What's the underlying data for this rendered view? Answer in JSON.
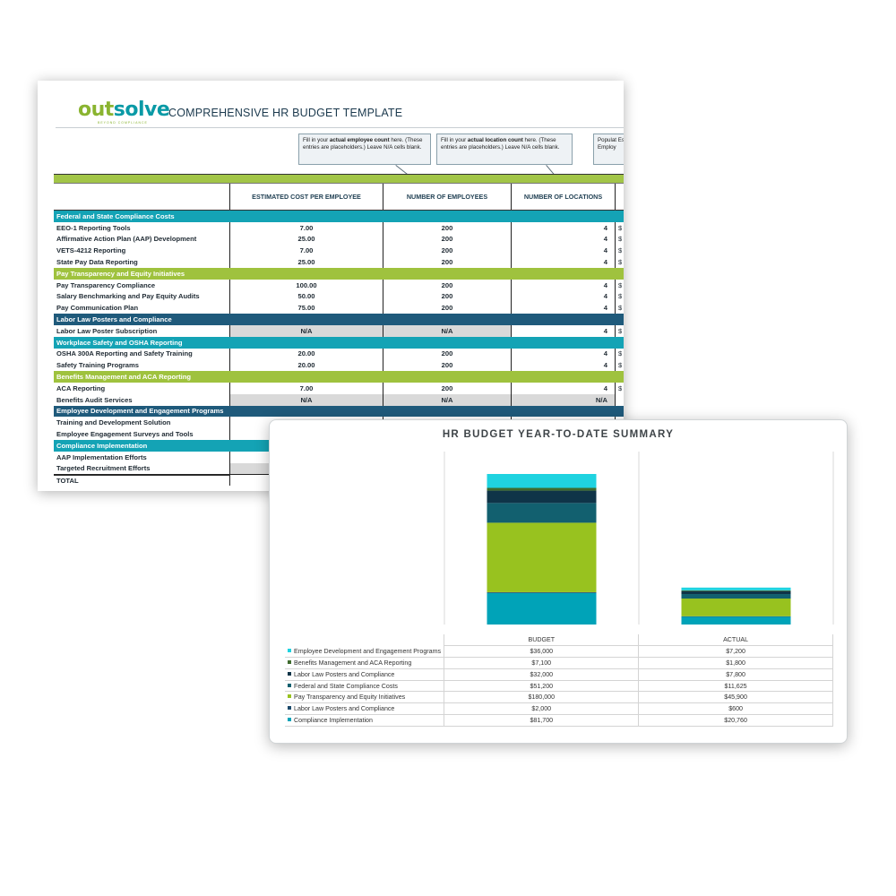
{
  "sheet": {
    "logo": {
      "part1": "out",
      "part2": "solve",
      "tagline": "BEYOND COMPLIANCE"
    },
    "title": "COMPREHENSIVE HR BUDGET TEMPLATE",
    "notes": [
      {
        "pre": "Fill in your ",
        "bold": "actual employee count",
        "post": " here. (These entries are placeholders.) Leave N/A cells blank."
      },
      {
        "pre": "Fill in your ",
        "bold": "actual location count",
        "post": " here. (These entries are placeholders.) Leave N/A cells blank."
      },
      {
        "pre": "Populat",
        "bold": "",
        "post": " Estimat Employ"
      }
    ],
    "columns": [
      "",
      "ESTIMATED COST PER EMPLOYEE",
      "NUMBER OF EMPLOYEES",
      "NUMBER OF LOCATIONS"
    ],
    "rows": [
      {
        "type": "cat",
        "color": "teal",
        "label": "Federal and State Compliance Costs"
      },
      {
        "type": "item",
        "label": "EEO-1 Reporting Tools",
        "cost": "7.00",
        "emp": "200",
        "loc": "4",
        "tail": "$"
      },
      {
        "type": "item",
        "label": "Affirmative Action Plan (AAP) Development",
        "cost": "25.00",
        "emp": "200",
        "loc": "4",
        "tail": "$"
      },
      {
        "type": "item",
        "label": "VETS-4212 Reporting",
        "cost": "7.00",
        "emp": "200",
        "loc": "4",
        "tail": "$"
      },
      {
        "type": "item",
        "label": "State Pay Data Reporting",
        "cost": "25.00",
        "emp": "200",
        "loc": "4",
        "tail": "$"
      },
      {
        "type": "cat",
        "color": "green",
        "label": "Pay Transparency and Equity Initiatives"
      },
      {
        "type": "item",
        "label": "Pay Transparency Compliance",
        "cost": "100.00",
        "emp": "200",
        "loc": "4",
        "tail": "$"
      },
      {
        "type": "item",
        "label": "Salary Benchmarking and Pay Equity Audits",
        "cost": "50.00",
        "emp": "200",
        "loc": "4",
        "tail": "$"
      },
      {
        "type": "item",
        "label": "Pay Communication Plan",
        "cost": "75.00",
        "emp": "200",
        "loc": "4",
        "tail": "$"
      },
      {
        "type": "cat",
        "color": "navy",
        "label": "Labor Law Posters and Compliance"
      },
      {
        "type": "item",
        "label": "Labor Law Poster Subscription",
        "cost": "N/A",
        "emp": "N/A",
        "loc": "4",
        "tail": "$",
        "na": [
          1,
          2
        ]
      },
      {
        "type": "cat",
        "color": "teal",
        "label": "Workplace Safety and OSHA Reporting"
      },
      {
        "type": "item",
        "label": "OSHA 300A Reporting and Safety Training",
        "cost": "20.00",
        "emp": "200",
        "loc": "4",
        "tail": "$"
      },
      {
        "type": "item",
        "label": "Safety Training Programs",
        "cost": "20.00",
        "emp": "200",
        "loc": "4",
        "tail": "$"
      },
      {
        "type": "cat",
        "color": "green",
        "label": "Benefits Management and ACA Reporting"
      },
      {
        "type": "item",
        "label": "ACA Reporting",
        "cost": "7.00",
        "emp": "200",
        "loc": "4",
        "tail": "$"
      },
      {
        "type": "item",
        "label": "Benefits Audit Services",
        "cost": "N/A",
        "emp": "N/A",
        "loc": "N/A",
        "tail": "",
        "na": [
          1,
          2,
          3
        ]
      },
      {
        "type": "cat",
        "color": "navy",
        "label": "Employee Development and Engagement Programs"
      },
      {
        "type": "item",
        "label": "Training and Development Solution",
        "cost": "",
        "emp": "",
        "loc": "",
        "tail": ""
      },
      {
        "type": "item",
        "label": "Employee Engagement Surveys and Tools",
        "cost": "",
        "emp": "",
        "loc": "",
        "tail": ""
      },
      {
        "type": "cat",
        "color": "teal",
        "label": "Compliance Implementation"
      },
      {
        "type": "item",
        "label": "AAP Implementation Efforts",
        "cost": "",
        "emp": "",
        "loc": "",
        "tail": ""
      },
      {
        "type": "item",
        "label": "Targeted Recruitment Efforts",
        "cost": "",
        "emp": "",
        "loc": "",
        "tail": "",
        "na": [
          1
        ]
      },
      {
        "type": "total",
        "label": "TOTAL"
      }
    ]
  },
  "colors": {
    "teal": "#14a3b5",
    "green": "#9fc23e",
    "navy": "#1f5a7b",
    "cyan": "#1fd3e0",
    "bar_olive": "#3f6b2e",
    "bar_dark": "#0f3448",
    "bar_teal_dark": "#12606f",
    "bar_green": "#98c21f",
    "bar_navy": "#1c4a6b",
    "bar_teal": "#00a3b8"
  },
  "chart_data": {
    "type": "bar",
    "stacked": true,
    "title": "HR BUDGET YEAR-TO-DATE SUMMARY",
    "categories": [
      "BUDGET",
      "ACTUAL"
    ],
    "series": [
      {
        "name": "Employee Development and Engagement Programs",
        "values": [
          36000,
          7200
        ],
        "labels": [
          "$36,000",
          "$7,200"
        ],
        "color": "#1fd3e0"
      },
      {
        "name": "Benefits Management and ACA Reporting",
        "values": [
          7100,
          1800
        ],
        "labels": [
          "$7,100",
          "$1,800"
        ],
        "color": "#3f6b2e"
      },
      {
        "name": "Labor Law Posters and Compliance",
        "values": [
          32000,
          7800
        ],
        "labels": [
          "$32,000",
          "$7,800"
        ],
        "color": "#0f3448"
      },
      {
        "name": "Federal and State Compliance Costs",
        "values": [
          51200,
          11625
        ],
        "labels": [
          "$51,200",
          "$11,625"
        ],
        "color": "#12606f"
      },
      {
        "name": "Pay Transparency and Equity Initiatives",
        "values": [
          180000,
          45900
        ],
        "labels": [
          "$180,000",
          "$45,900"
        ],
        "color": "#98c21f"
      },
      {
        "name": "Labor Law Posters and Compliance",
        "values": [
          2000,
          600
        ],
        "labels": [
          "$2,000",
          "$600"
        ],
        "color": "#1c4a6b"
      },
      {
        "name": "Compliance Implementation",
        "values": [
          81700,
          20760
        ],
        "labels": [
          "$81,700",
          "$20,760"
        ],
        "color": "#00a3b8"
      }
    ],
    "grid": false,
    "legend": "bottom-table"
  }
}
